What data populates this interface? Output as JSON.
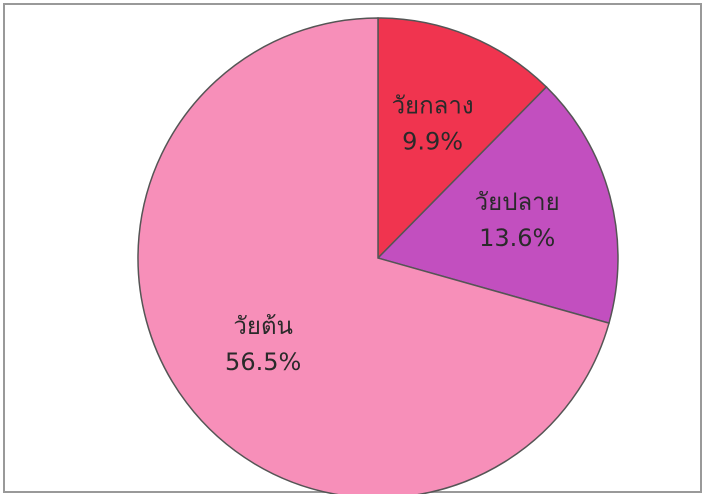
{
  "chart_data": {
    "type": "pie",
    "categories": [
      "วัยกลาง",
      "วัยปลาย",
      "วัยต้น"
    ],
    "values": [
      9.9,
      13.6,
      56.5
    ],
    "value_labels": [
      "9.9%",
      "13.6%",
      "56.5%"
    ],
    "colors": [
      "#f0344f",
      "#c24fbf",
      "#f78fb9"
    ]
  }
}
